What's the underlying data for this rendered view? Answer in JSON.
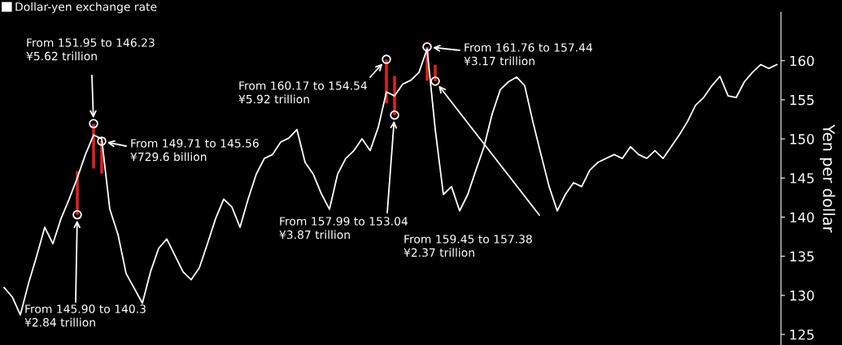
{
  "chart_data": {
    "type": "line",
    "categories": [
      null,
      null,
      null,
      null,
      null,
      null,
      null,
      null,
      null,
      null,
      null,
      null,
      null,
      null,
      null,
      null,
      null,
      null,
      null,
      null,
      null,
      null,
      null,
      null,
      null,
      null,
      null,
      null,
      null,
      null,
      null,
      null,
      null,
      null,
      null,
      null,
      null,
      null,
      null,
      null,
      null,
      null,
      null,
      null,
      null,
      null,
      null,
      null,
      null,
      null,
      null,
      null,
      null,
      null,
      null,
      null,
      null,
      null,
      null,
      null,
      null,
      null,
      null,
      null,
      null,
      null,
      null,
      null,
      null,
      null,
      null,
      null,
      null,
      null,
      null,
      null,
      null,
      null,
      null,
      null,
      null,
      null,
      null,
      null,
      null,
      null,
      null,
      null,
      null,
      null,
      null,
      null,
      null,
      null,
      null,
      null
    ],
    "series": [
      {
        "name": "Dollar-yen exchange rate",
        "color": "#ffffff",
        "values": [
          131,
          129.8,
          127.5,
          131.5,
          135,
          138.7,
          136.6,
          139.8,
          142.3,
          145,
          148,
          150.5,
          150,
          141,
          137.8,
          132.8,
          130.9,
          129,
          133,
          136,
          137.2,
          135.1,
          133,
          132,
          133.5,
          136.6,
          139.8,
          142.3,
          141.3,
          138.7,
          142.3,
          145.5,
          147.5,
          148,
          149.6,
          150.1,
          151.2,
          147,
          145.5,
          143,
          141,
          145.5,
          147.5,
          148.5,
          150,
          148.5,
          151.5,
          156,
          155.5,
          157,
          157.5,
          158.5,
          161.5,
          151.2,
          142.9,
          143.9,
          140.8,
          142.9,
          146,
          149,
          153.2,
          156.3,
          157.3,
          157.9,
          156.8,
          152.2,
          148,
          143.9,
          140.8,
          142.9,
          144.4,
          143.9,
          146,
          147,
          147.5,
          148,
          147.5,
          149,
          148,
          147.5,
          148.5,
          147.5,
          149,
          150.5,
          152.2,
          154.3,
          155.3,
          156.8,
          158,
          155.5,
          155.3,
          157.3,
          158.5,
          159.5,
          159,
          159.5
        ]
      },
      {
        "type": "bar",
        "color": "#e8201c",
        "base": [
          null,
          null,
          null,
          null,
          null,
          null,
          null,
          null,
          null,
          140.3,
          null,
          146.23,
          145.56,
          null,
          null,
          null,
          null,
          null,
          null,
          null,
          null,
          null,
          null,
          null,
          null,
          null,
          null,
          null,
          null,
          null,
          null,
          null,
          null,
          null,
          null,
          null,
          null,
          null,
          null,
          null,
          null,
          null,
          null,
          null,
          null,
          null,
          null,
          154.54,
          153.04,
          null,
          null,
          null,
          157.44,
          157.38,
          null,
          null,
          null,
          null,
          null,
          null,
          null,
          null,
          null,
          null,
          null,
          null,
          null,
          null,
          null,
          null,
          null,
          null,
          null,
          null,
          null,
          null,
          null,
          null,
          null,
          null,
          null,
          null,
          null,
          null,
          null,
          null,
          null,
          null,
          null,
          null,
          null,
          null,
          null,
          null,
          null,
          null
        ],
        "values": [
          null,
          null,
          null,
          null,
          null,
          null,
          null,
          null,
          null,
          5.6,
          null,
          5.7,
          4.2,
          null,
          null,
          null,
          null,
          null,
          null,
          null,
          null,
          null,
          null,
          null,
          null,
          null,
          null,
          null,
          null,
          null,
          null,
          null,
          null,
          null,
          null,
          null,
          null,
          null,
          null,
          null,
          null,
          null,
          null,
          null,
          null,
          null,
          null,
          5.6,
          5.0,
          null,
          null,
          null,
          4.3,
          2.1,
          null,
          null,
          null,
          null,
          null,
          null,
          null,
          null,
          null,
          null,
          null,
          null,
          null,
          null,
          null,
          null,
          null,
          null,
          null,
          null,
          null,
          null,
          null,
          null,
          null,
          null,
          null,
          null,
          null,
          null,
          null,
          null,
          null,
          null,
          null,
          null,
          null,
          null,
          null,
          null,
          null,
          null
        ]
      },
      {
        "type": "scatter",
        "color": "#ffffff",
        "marker": "circle",
        "values": [
          null,
          null,
          null,
          null,
          null,
          null,
          null,
          null,
          null,
          140.3,
          null,
          151.95,
          149.71,
          null,
          null,
          null,
          null,
          null,
          null,
          null,
          null,
          null,
          null,
          null,
          null,
          null,
          null,
          null,
          null,
          null,
          null,
          null,
          null,
          null,
          null,
          null,
          null,
          null,
          null,
          null,
          null,
          null,
          null,
          null,
          null,
          null,
          null,
          160.17,
          153.04,
          null,
          null,
          null,
          161.76,
          157.38,
          null,
          null,
          null,
          null,
          null,
          null,
          null,
          null,
          null,
          null,
          null,
          null,
          null,
          null,
          null,
          null,
          null,
          null,
          null,
          null,
          null,
          null,
          null,
          null,
          null,
          null,
          null,
          null,
          null,
          null,
          null,
          null,
          null,
          null,
          null,
          null,
          null,
          null,
          null,
          null,
          null,
          null
        ]
      }
    ],
    "ylim": [
      123.65,
      166.2
    ],
    "yticks": [
      125,
      130,
      135,
      140,
      145,
      150,
      155,
      160
    ],
    "ylabel": "Yen per dollar",
    "tick_labels": "y",
    "grid": false,
    "legend": "top left",
    "annotations": [
      "From 145.90 to 140.3\n¥2.84 trillion",
      "From 151.95 to 146.23\n¥5.62 trillion",
      "From 149.71 to 145.56\n¥729.6 billion",
      "From 160.17 to 154.54\n¥5.92 trillion",
      "From 157.99 to 153.04\n¥3.87 trillion",
      "From 161.76 to 157.44\n¥3.17 trillion",
      "From 159.45 to 157.38\n¥2.37 trillion"
    ]
  }
}
